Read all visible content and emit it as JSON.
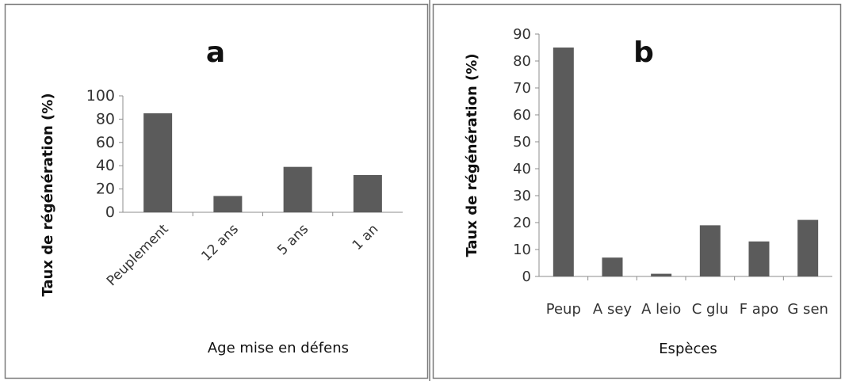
{
  "chart_data": [
    {
      "type": "bar",
      "title": "a",
      "xlabel": "Age mise en défens",
      "ylabel": "Taux de régénération (%)",
      "categories": [
        "Peuplement",
        "12 ans",
        "5 ans",
        "1 an"
      ],
      "values": [
        85,
        14,
        39,
        32
      ],
      "ylim": [
        0,
        100
      ],
      "yticks": [
        "0",
        "20",
        "40",
        "60",
        "80",
        "100"
      ],
      "grid": false,
      "bar_color": "#5b5b5b"
    },
    {
      "type": "bar",
      "title": "b",
      "xlabel": "Espèces",
      "ylabel": "Taux de régénération (%)",
      "categories": [
        "Peup",
        "A sey",
        "A leio",
        "C glu",
        "F apo",
        "G sen"
      ],
      "values": [
        85,
        7,
        1,
        19,
        13,
        21
      ],
      "ylim": [
        0,
        90
      ],
      "yticks": [
        "0",
        "10",
        "20",
        "30",
        "40",
        "50",
        "60",
        "70",
        "80",
        "90"
      ],
      "grid": false,
      "bar_color": "#5b5b5b"
    }
  ]
}
